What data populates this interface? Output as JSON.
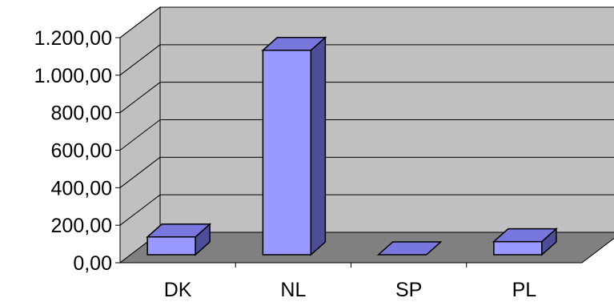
{
  "chart_data": {
    "type": "bar",
    "categories": [
      "DK",
      "NL",
      "SP",
      "PL"
    ],
    "values": [
      95,
      1090,
      0,
      70
    ],
    "ylim": [
      0,
      1200
    ],
    "yticks": [
      "0,00",
      "200,00",
      "400,00",
      "600,00",
      "800,00",
      "1.000,00",
      "1.200,00"
    ],
    "grid": true,
    "legend": "none",
    "three_d": true,
    "colors": {
      "bar_front": "#9999ff",
      "bar_top": "#7777dd",
      "bar_side": "#4d4d99",
      "wall": "#c0c0c0",
      "floor": "#808080",
      "axis": "#000000"
    }
  }
}
